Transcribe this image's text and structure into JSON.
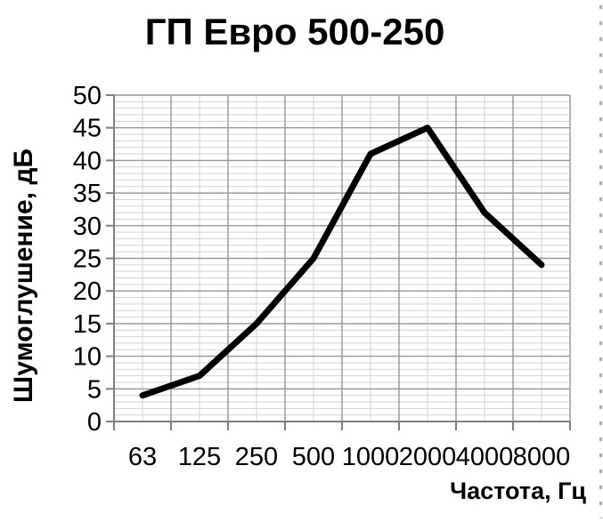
{
  "chart_data": {
    "type": "line",
    "title": "ГП Евро 500-250",
    "xlabel": "Частота, Гц",
    "ylabel": "Шумоглушение, дБ",
    "categories": [
      "63",
      "125",
      "250",
      "500",
      "1000",
      "2000",
      "4000",
      "8000"
    ],
    "values": [
      4,
      7,
      15,
      25,
      41,
      45,
      32,
      24
    ],
    "ylim": [
      0,
      50
    ],
    "yticks": [
      0,
      5,
      10,
      15,
      20,
      25,
      30,
      35,
      40,
      45,
      50
    ],
    "y_minor_step": 1,
    "grid": {
      "major_horizontal": true,
      "minor_horizontal": true,
      "major_vertical": true,
      "minor_vertical_at_midpoints": true
    },
    "legend_position": "none",
    "series": [
      {
        "name": "ГП Евро 500-250",
        "values": [
          4,
          7,
          15,
          25,
          41,
          45,
          32,
          24
        ],
        "color": "#000000",
        "stroke_width": 7
      }
    ],
    "colors": {
      "background": "#ffffff",
      "axis": "#7f7f7f",
      "grid_major": "#969696",
      "grid_minor": "#d2d2d2",
      "text": "#000000",
      "dashed_border": "#ababab"
    }
  }
}
